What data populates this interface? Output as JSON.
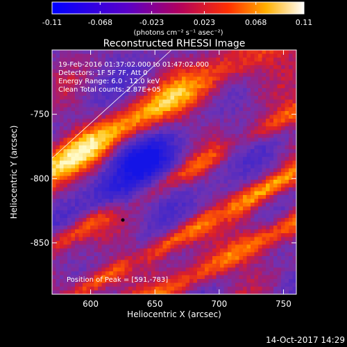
{
  "colorbar": {
    "ticks": [
      "-0.11",
      "-0.068",
      "-0.023",
      "0.023",
      "0.068",
      "0.11"
    ],
    "unit_label": "(photons cm⁻² s⁻¹ asec⁻²)",
    "range": [
      -0.11,
      0.11
    ]
  },
  "chart_data": {
    "type": "heatmap",
    "title": "Reconstructed RHESSI Image",
    "xlabel": "Heliocentric X (arcsec)",
    "ylabel": "Heliocentric Y (arcsec)",
    "x_ticks": [
      "600",
      "650",
      "700",
      "750"
    ],
    "y_ticks": [
      "-750",
      "-800",
      "-850"
    ],
    "xlim": [
      570,
      760
    ],
    "ylim": [
      -890,
      -700
    ],
    "colormap": "blue-purple-red-yellow-white",
    "annotations": [
      "19-Feb-2016 01:37:02.000 to 01:47:02.000",
      "Detectors: 1F 5F 7F, Att 0",
      "Energy Range: 6.0 - 12.0 keV",
      "Clean    Total counts: 2.87E+05"
    ],
    "peak_label": "Position of Peak = [591,-783]",
    "peak": [
      591,
      -783
    ]
  },
  "footer": {
    "timestamp": "14-Oct-2017 14:29"
  }
}
